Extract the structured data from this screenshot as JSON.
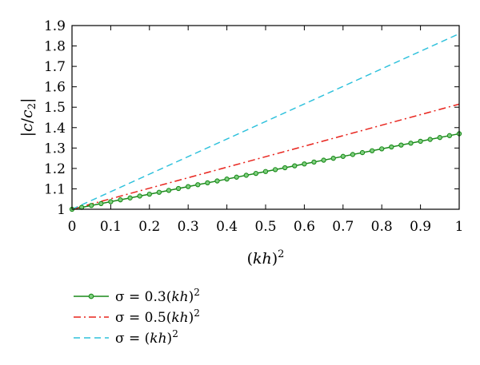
{
  "chart_data": {
    "type": "line",
    "title": "",
    "xlabel": "(kh)^2",
    "ylabel": "|c/c_2|",
    "xlim": [
      0,
      1
    ],
    "ylim": [
      1,
      1.9
    ],
    "xticks": [
      0,
      0.1,
      0.2,
      0.3,
      0.4,
      0.5,
      0.6,
      0.7,
      0.8,
      0.9,
      1
    ],
    "xtick_labels": [
      "0",
      "0.1",
      "0.2",
      "0.3",
      "0.4",
      "0.5",
      "0.6",
      "0.7",
      "0.8",
      "0.9",
      "1"
    ],
    "yticks": [
      1,
      1.1,
      1.2,
      1.3,
      1.4,
      1.5,
      1.6,
      1.7,
      1.8,
      1.9
    ],
    "ytick_labels": [
      "1",
      "1.1",
      "1.2",
      "1.3",
      "1.4",
      "1.5",
      "1.6",
      "1.7",
      "1.8",
      "1.9"
    ],
    "grid": false,
    "legend_position": "below plot, left",
    "series": [
      {
        "name": "σ = 0.3(kh)^2",
        "color": "#1a8a1a",
        "line_style": "solid",
        "marker": "circle",
        "x": [
          0,
          0.1,
          0.2,
          0.3,
          0.4,
          0.5,
          0.6,
          0.7,
          0.8,
          0.9,
          1.0
        ],
        "y": [
          1.0,
          1.037,
          1.074,
          1.111,
          1.148,
          1.185,
          1.222,
          1.259,
          1.296,
          1.333,
          1.37
        ]
      },
      {
        "name": "σ = 0.5(kh)^2",
        "color": "#e8231c",
        "line_style": "dashdot",
        "marker": "none",
        "x": [
          0,
          1.0
        ],
        "y": [
          1.0,
          1.515
        ]
      },
      {
        "name": "σ = (kh)^2",
        "color": "#2ec1dc",
        "line_style": "dashed",
        "marker": "none",
        "x": [
          0,
          1.0
        ],
        "y": [
          1.0,
          1.86
        ]
      }
    ]
  },
  "legend": [
    {
      "prefix": "σ = ",
      "coef": "0.3",
      "base": "(kh)",
      "exp": "2"
    },
    {
      "prefix": "σ = ",
      "coef": "0.5",
      "base": "(kh)",
      "exp": "2"
    },
    {
      "prefix": "σ = ",
      "coef": "",
      "base": "(kh)",
      "exp": "2"
    }
  ]
}
